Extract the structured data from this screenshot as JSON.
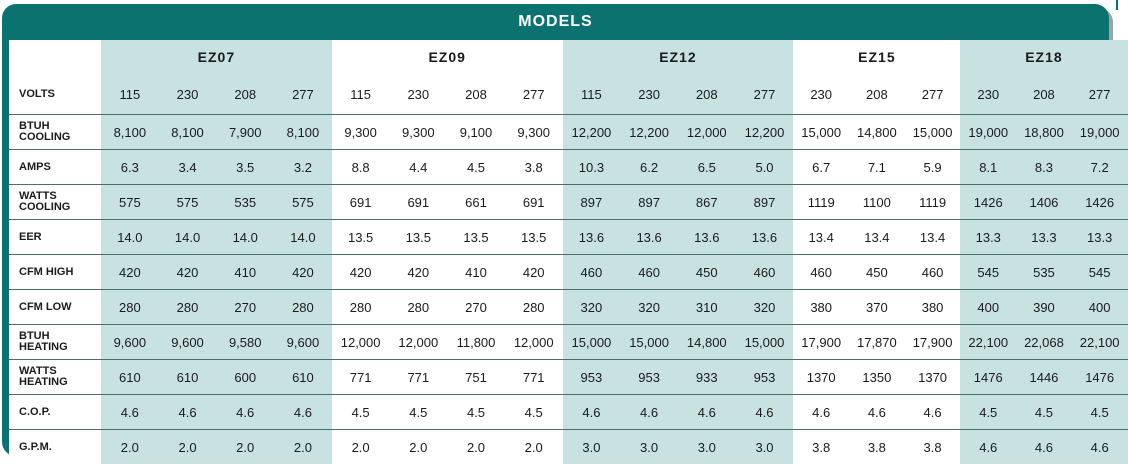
{
  "header": {
    "title": "MODELS"
  },
  "models": [
    {
      "name": "EZ07",
      "volts": [
        "115",
        "230",
        "208",
        "277"
      ],
      "shaded": true
    },
    {
      "name": "EZ09",
      "volts": [
        "115",
        "230",
        "208",
        "277"
      ],
      "shaded": false
    },
    {
      "name": "EZ12",
      "volts": [
        "115",
        "230",
        "208",
        "277"
      ],
      "shaded": true
    },
    {
      "name": "EZ15",
      "volts": [
        "230",
        "208",
        "277"
      ],
      "shaded": false
    },
    {
      "name": "EZ18",
      "volts": [
        "230",
        "208",
        "277"
      ],
      "shaded": true
    }
  ],
  "volts_label": "VOLTS",
  "rows": [
    {
      "label": [
        "BTUH",
        "COOLING"
      ],
      "values": [
        "8,100",
        "8,100",
        "7,900",
        "8,100",
        "9,300",
        "9,300",
        "9,100",
        "9,300",
        "12,200",
        "12,200",
        "12,000",
        "12,200",
        "15,000",
        "14,800",
        "15,000",
        "19,000",
        "18,800",
        "19,000"
      ]
    },
    {
      "label": [
        "AMPS"
      ],
      "values": [
        "6.3",
        "3.4",
        "3.5",
        "3.2",
        "8.8",
        "4.4",
        "4.5",
        "3.8",
        "10.3",
        "6.2",
        "6.5",
        "5.0",
        "6.7",
        "7.1",
        "5.9",
        "8.1",
        "8.3",
        "7.2"
      ]
    },
    {
      "label": [
        "WATTS",
        "COOLING"
      ],
      "values": [
        "575",
        "575",
        "535",
        "575",
        "691",
        "691",
        "661",
        "691",
        "897",
        "897",
        "867",
        "897",
        "1119",
        "1100",
        "1119",
        "1426",
        "1406",
        "1426"
      ]
    },
    {
      "label": [
        "EER"
      ],
      "values": [
        "14.0",
        "14.0",
        "14.0",
        "14.0",
        "13.5",
        "13.5",
        "13.5",
        "13.5",
        "13.6",
        "13.6",
        "13.6",
        "13.6",
        "13.4",
        "13.4",
        "13.4",
        "13.3",
        "13.3",
        "13.3"
      ]
    },
    {
      "label": [
        "CFM HIGH"
      ],
      "values": [
        "420",
        "420",
        "410",
        "420",
        "420",
        "420",
        "410",
        "420",
        "460",
        "460",
        "450",
        "460",
        "460",
        "450",
        "460",
        "545",
        "535",
        "545"
      ]
    },
    {
      "label": [
        "CFM LOW"
      ],
      "values": [
        "280",
        "280",
        "270",
        "280",
        "280",
        "280",
        "270",
        "280",
        "320",
        "320",
        "310",
        "320",
        "380",
        "370",
        "380",
        "400",
        "390",
        "400"
      ]
    },
    {
      "label": [
        "BTUH",
        "HEATING"
      ],
      "values": [
        "9,600",
        "9,600",
        "9,580",
        "9,600",
        "12,000",
        "12,000",
        "11,800",
        "12,000",
        "15,000",
        "15,000",
        "14,800",
        "15,000",
        "17,900",
        "17,870",
        "17,900",
        "22,100",
        "22,068",
        "22,100"
      ]
    },
    {
      "label": [
        "WATTS",
        "HEATING"
      ],
      "values": [
        "610",
        "610",
        "600",
        "610",
        "771",
        "771",
        "751",
        "771",
        "953",
        "953",
        "933",
        "953",
        "1370",
        "1350",
        "1370",
        "1476",
        "1446",
        "1476"
      ]
    },
    {
      "label": [
        "C.O.P."
      ],
      "values": [
        "4.6",
        "4.6",
        "4.6",
        "4.6",
        "4.5",
        "4.5",
        "4.5",
        "4.5",
        "4.6",
        "4.6",
        "4.6",
        "4.6",
        "4.6",
        "4.6",
        "4.6",
        "4.5",
        "4.5",
        "4.5"
      ]
    },
    {
      "label": [
        "G.P.M."
      ],
      "values": [
        "2.0",
        "2.0",
        "2.0",
        "2.0",
        "2.0",
        "2.0",
        "2.0",
        "2.0",
        "3.0",
        "3.0",
        "3.0",
        "3.0",
        "3.8",
        "3.8",
        "3.8",
        "4.6",
        "4.6",
        "4.6"
      ]
    }
  ]
}
